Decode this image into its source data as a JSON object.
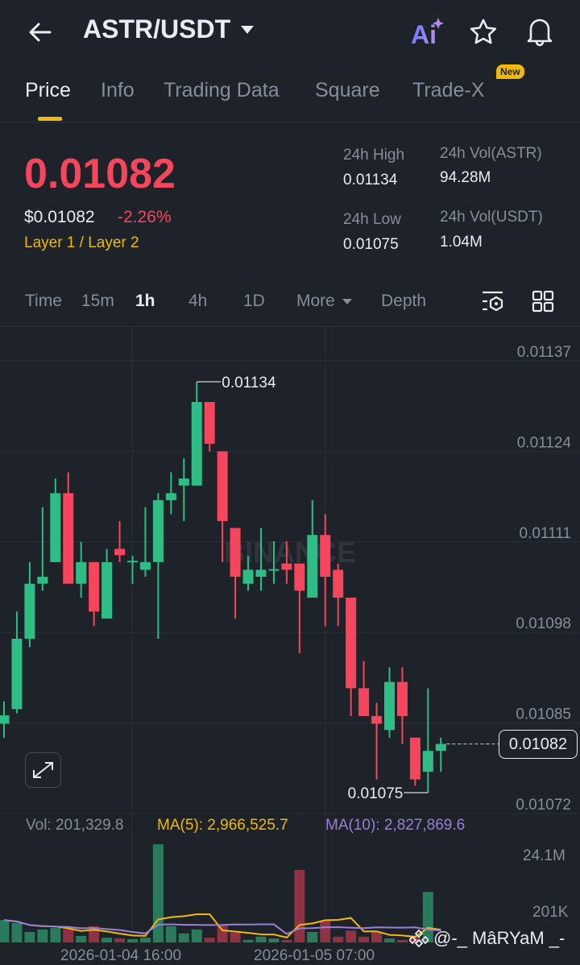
{
  "header": {
    "title": "ASTR/USDT",
    "icons": [
      "back-arrow-icon",
      "caret-down-icon",
      "ai-icon",
      "star-icon",
      "bell-icon"
    ]
  },
  "tabs": [
    {
      "label": "Price",
      "active": true
    },
    {
      "label": "Info"
    },
    {
      "label": "Trading Data"
    },
    {
      "label": "Square"
    },
    {
      "label": "Trade-X",
      "badge": "New"
    }
  ],
  "ticker": {
    "price": "0.01082",
    "usd_price": "$0.01082",
    "change": "-2.26%",
    "category": "Layer 1 / Layer 2",
    "stats": [
      {
        "label": "24h High",
        "value": "0.01134"
      },
      {
        "label": "24h Vol(ASTR)",
        "value": "94.28M"
      },
      {
        "label": "24h Low",
        "value": "0.01075"
      },
      {
        "label": "24h Vol(USDT)",
        "value": "1.04M"
      }
    ]
  },
  "intervals": [
    {
      "label": "Time"
    },
    {
      "label": "15m"
    },
    {
      "label": "1h",
      "active": true
    },
    {
      "label": "4h"
    },
    {
      "label": "1D"
    },
    {
      "label": "More"
    },
    {
      "label": "Depth"
    }
  ],
  "colors": {
    "up": "#2ebd85",
    "down": "#f6465d",
    "accent": "#f0b90b",
    "ma5": "#f0b90b",
    "ma10": "#9b7fd6",
    "bg": "#1e2229"
  },
  "chart": {
    "watermark": "BINANCE",
    "current_price": "0.01082",
    "high_label": "0.01134",
    "low_label": "0.01075",
    "vol_label": "Vol: 201,329.8",
    "ma5_label": "MA(5): 2,966,525.7",
    "ma10_label": "MA(10): 2,827,869.6",
    "vol_axis": [
      "24.1M",
      "201K"
    ],
    "time_labels": [
      "2026-01-04 16:00",
      "2026-01-05 07:00"
    ],
    "user_watermark": "@-_ MâRYaM _-"
  },
  "chart_data": {
    "type": "candlestick",
    "interval": "1h",
    "ylim": [
      0.01072,
      0.01137
    ],
    "y_ticks": [
      "0.01137",
      "0.01124",
      "0.01111",
      "0.01098",
      "0.01085",
      "0.01072"
    ],
    "ohlc": [
      [
        0.010849,
        0.010881,
        0.010829,
        0.010861
      ],
      [
        0.01087,
        0.01101,
        0.010864,
        0.010971
      ],
      [
        0.010971,
        0.011081,
        0.010959,
        0.01105
      ],
      [
        0.01105,
        0.01116,
        0.01104,
        0.01106
      ],
      [
        0.011081,
        0.011201,
        0.011081,
        0.01118
      ],
      [
        0.01118,
        0.01121,
        0.01105,
        0.01105
      ],
      [
        0.01105,
        0.01111,
        0.01103,
        0.011081
      ],
      [
        0.011081,
        0.011081,
        0.010989,
        0.01101
      ],
      [
        0.011,
        0.0111,
        0.011,
        0.011081
      ],
      [
        0.0111,
        0.01114,
        0.011081,
        0.011091
      ],
      [
        0.011082,
        0.01109,
        0.01105,
        0.011083
      ],
      [
        0.01107,
        0.01116,
        0.01106,
        0.011081
      ],
      [
        0.011081,
        0.01118,
        0.010971,
        0.01117
      ],
      [
        0.01117,
        0.01121,
        0.01115,
        0.01118
      ],
      [
        0.011191,
        0.01123,
        0.01114,
        0.011201
      ],
      [
        0.011191,
        0.01134,
        0.011191,
        0.011311
      ],
      [
        0.011311,
        0.011311,
        0.01124,
        0.011251
      ],
      [
        0.01124,
        0.01124,
        0.011081,
        0.01114
      ],
      [
        0.01113,
        0.01113,
        0.011,
        0.01106
      ],
      [
        0.01105,
        0.01109,
        0.01104,
        0.01107
      ],
      [
        0.01106,
        0.01113,
        0.01104,
        0.01107
      ],
      [
        0.01107,
        0.011111,
        0.01105,
        0.011071
      ],
      [
        0.011079,
        0.011111,
        0.01105,
        0.01107
      ],
      [
        0.011079,
        0.011079,
        0.01095,
        0.01104
      ],
      [
        0.01103,
        0.01117,
        0.01103,
        0.01112
      ],
      [
        0.01112,
        0.01115,
        0.010989,
        0.01106
      ],
      [
        0.01107,
        0.011079,
        0.010989,
        0.01103
      ],
      [
        0.01103,
        0.01103,
        0.01086,
        0.0109
      ],
      [
        0.0109,
        0.010939,
        0.01086,
        0.01086
      ],
      [
        0.01086,
        0.010879,
        0.010769,
        0.010849
      ],
      [
        0.01084,
        0.01093,
        0.010829,
        0.010909
      ],
      [
        0.010909,
        0.01093,
        0.01082,
        0.01086
      ],
      [
        0.010829,
        0.010829,
        0.01076,
        0.010769
      ],
      [
        0.01078,
        0.0109,
        0.01075,
        0.01081
      ],
      [
        0.01081,
        0.010829,
        0.01078,
        0.01082
      ]
    ],
    "volume_millions": [
      6.2,
      5.4,
      2.9,
      3.6,
      4.0,
      3.6,
      1.8,
      4.5,
      1.3,
      1.1,
      0.9,
      1.3,
      27.2,
      4.5,
      2.5,
      3.6,
      1.3,
      4.9,
      2.7,
      0.7,
      1.6,
      1.1,
      0.7,
      20.1,
      2.9,
      6.0,
      1.6,
      3.3,
      1.6,
      2.9,
      1.1,
      0.7,
      1.6,
      14.0,
      0.2
    ],
    "time_label_index": [
      10,
      25
    ]
  }
}
